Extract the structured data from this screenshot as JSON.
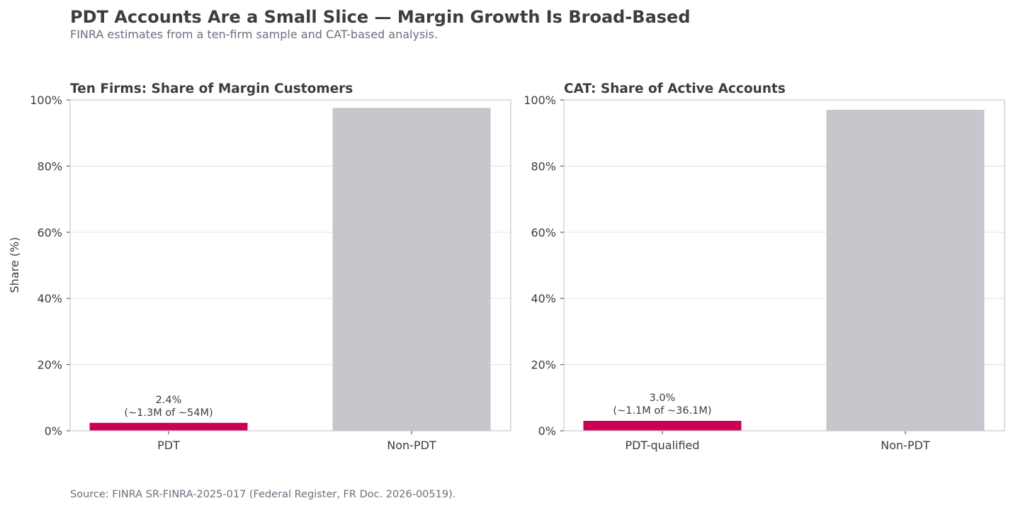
{
  "title": "PDT Accounts Are a Small Slice — Margin Growth Is Broad-Based",
  "subtitle": "FINRA estimates from a ten-firm sample and CAT-based analysis.",
  "source": "Source: FINRA SR-FINRA-2025-017 (Federal Register, FR Doc. 2026-00519).",
  "colors": {
    "highlight": "#cc0055",
    "neutral": "#c8c6cc",
    "grid": "#e6e6e6",
    "spine": "#c8c8cc"
  },
  "chart_data": [
    {
      "type": "bar",
      "title": "Ten Firms: Share of Margin Customers",
      "ylabel": "Share (%)",
      "xlabel": "",
      "ylim": [
        0,
        100
      ],
      "yticks": [
        0,
        20,
        40,
        60,
        80,
        100
      ],
      "ytick_labels": [
        "0%",
        "20%",
        "40%",
        "60%",
        "80%",
        "100%"
      ],
      "grid": "horizontal",
      "categories": [
        "PDT",
        "Non-PDT"
      ],
      "values": [
        2.4,
        97.6
      ],
      "bar_colors": [
        "#cc0055",
        "#c8c6cc"
      ],
      "annotations": [
        [
          "2.4%",
          "(~1.3M of ~54M)"
        ],
        null
      ]
    },
    {
      "type": "bar",
      "title": "CAT: Share of Active Accounts",
      "ylabel": "",
      "xlabel": "",
      "ylim": [
        0,
        100
      ],
      "yticks": [
        0,
        20,
        40,
        60,
        80,
        100
      ],
      "ytick_labels": [
        "0%",
        "20%",
        "40%",
        "60%",
        "80%",
        "100%"
      ],
      "grid": "horizontal",
      "categories": [
        "PDT-qualified",
        "Non-PDT"
      ],
      "values": [
        3.0,
        97.0
      ],
      "bar_colors": [
        "#cc0055",
        "#c8c6cc"
      ],
      "annotations": [
        [
          "3.0%",
          "(~1.1M of ~36.1M)"
        ],
        null
      ]
    }
  ]
}
